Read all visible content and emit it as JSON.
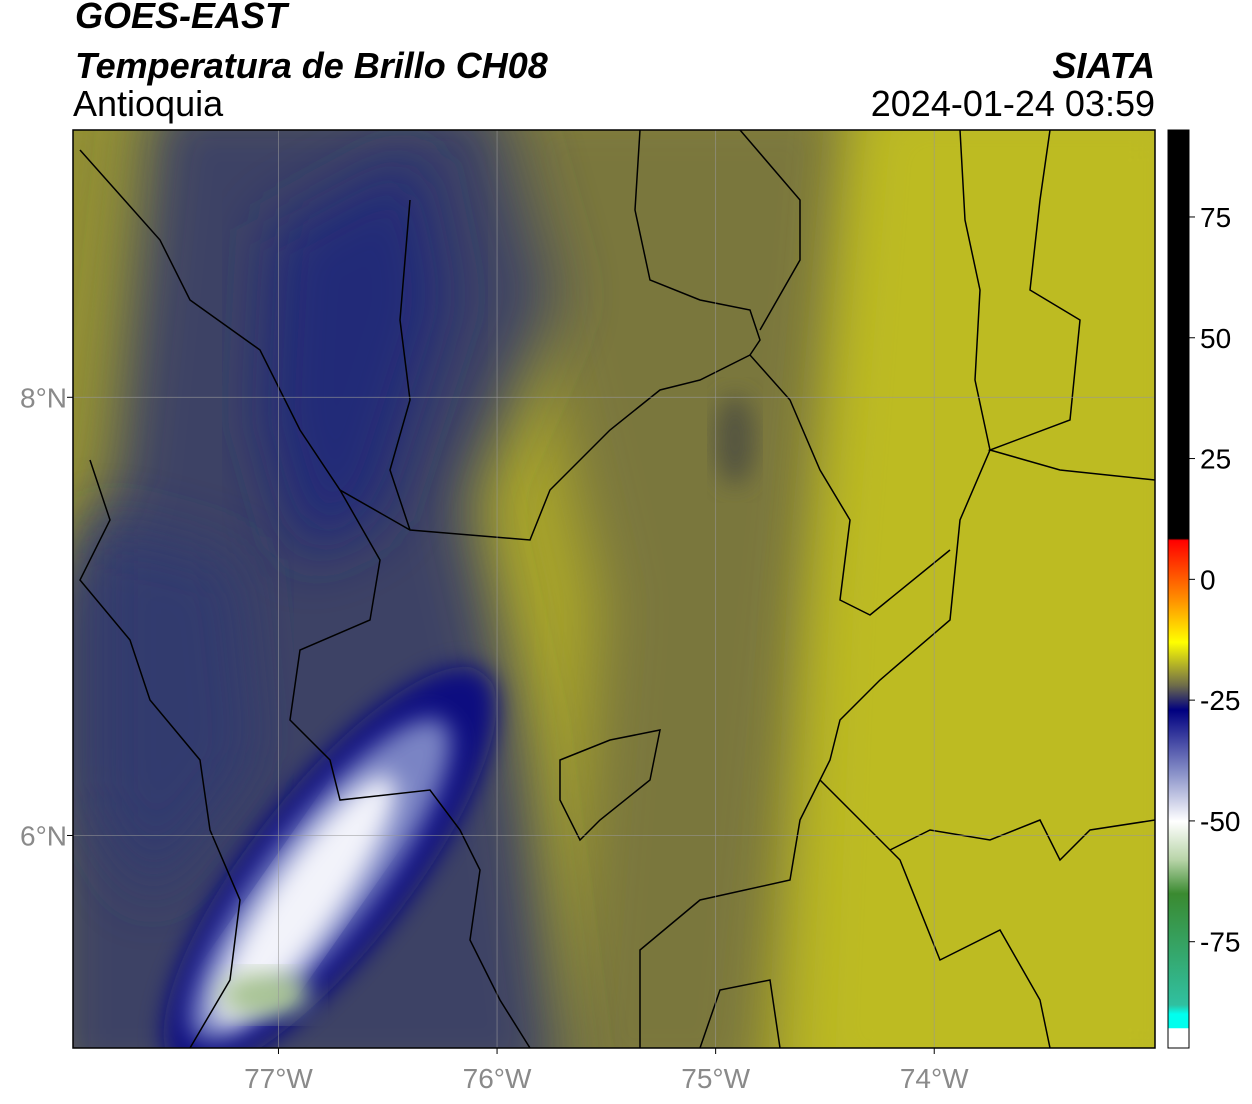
{
  "header": {
    "title": "GOES-EAST",
    "subtitle": "Temperatura de Brillo CH08",
    "region": "Antioquia",
    "source": "SIATA",
    "datetime": "2024-01-24 03:59"
  },
  "map": {
    "xlim": [
      -77.94,
      -72.99
    ],
    "ylim": [
      5.03,
      9.22
    ],
    "xticks": [
      {
        "value": -77,
        "label": "77°W"
      },
      {
        "value": -76,
        "label": "76°W"
      },
      {
        "value": -75,
        "label": "75°W"
      },
      {
        "value": -74,
        "label": "74°W"
      }
    ],
    "yticks": [
      {
        "value": 8,
        "label": "8°N"
      },
      {
        "value": 6,
        "label": "6°N"
      }
    ],
    "grid": true
  },
  "colorbar": {
    "limits": [
      -97,
      93
    ],
    "ticks": [
      75,
      50,
      25,
      0,
      -25,
      -50,
      -75
    ]
  }
}
